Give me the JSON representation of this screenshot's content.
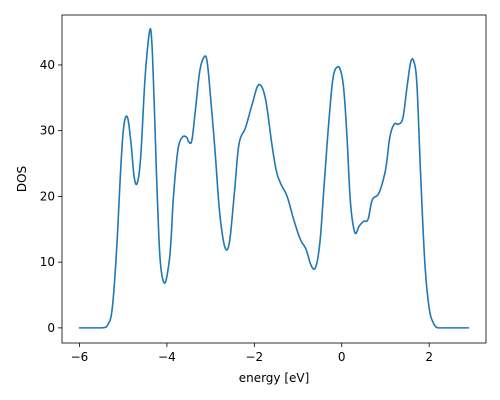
{
  "chart_data": {
    "type": "line",
    "title": "",
    "xlabel": "energy [eV]",
    "ylabel": "DOS",
    "xlim": [
      -6.4,
      3.3
    ],
    "ylim": [
      -2.3,
      47.6
    ],
    "xticks": [
      -6,
      -4,
      -2,
      0,
      2
    ],
    "yticks": [
      0,
      10,
      20,
      30,
      40
    ],
    "grid": false,
    "legend": "none",
    "series": [
      {
        "color": "#1f77b4",
        "x": [
          -6.0,
          -5.5,
          -5.35,
          -5.25,
          -5.15,
          -5.05,
          -4.98,
          -4.9,
          -4.82,
          -4.75,
          -4.68,
          -4.6,
          -4.5,
          -4.4,
          -4.35,
          -4.3,
          -4.22,
          -4.15,
          -4.05,
          -3.95,
          -3.9,
          -3.85,
          -3.75,
          -3.65,
          -3.55,
          -3.5,
          -3.43,
          -3.35,
          -3.25,
          -3.15,
          -3.08,
          -3.0,
          -2.9,
          -2.8,
          -2.7,
          -2.62,
          -2.55,
          -2.45,
          -2.35,
          -2.2,
          -2.05,
          -1.9,
          -1.75,
          -1.6,
          -1.5,
          -1.4,
          -1.25,
          -1.1,
          -0.95,
          -0.82,
          -0.7,
          -0.6,
          -0.5,
          -0.4,
          -0.3,
          -0.2,
          -0.1,
          -0.02,
          0.05,
          0.12,
          0.2,
          0.3,
          0.4,
          0.5,
          0.6,
          0.7,
          0.85,
          1.0,
          1.1,
          1.2,
          1.3,
          1.4,
          1.5,
          1.58,
          1.65,
          1.72,
          1.8,
          1.9,
          2.0,
          2.1,
          2.2,
          2.35,
          2.5,
          2.9
        ],
        "y": [
          0,
          0,
          0.5,
          3,
          12,
          25,
          31,
          32,
          28,
          23,
          22,
          26,
          38,
          45,
          44,
          36,
          20,
          10,
          6.8,
          10,
          14,
          20,
          27,
          29,
          29,
          28.3,
          28.5,
          33,
          39,
          41.2,
          40.5,
          35,
          27,
          18,
          13,
          11.9,
          14,
          21,
          28,
          30.5,
          34,
          37,
          35,
          28,
          24,
          22,
          20,
          16.5,
          13.5,
          12,
          9.5,
          9.2,
          13,
          22,
          31,
          38,
          39.7,
          39,
          36,
          29,
          19,
          14.5,
          15.5,
          16.2,
          16.5,
          19.5,
          20.5,
          24,
          29,
          31,
          31,
          32,
          37,
          40.5,
          40.5,
          37,
          24,
          10,
          3,
          0.7,
          0,
          0,
          0,
          0
        ]
      }
    ]
  }
}
